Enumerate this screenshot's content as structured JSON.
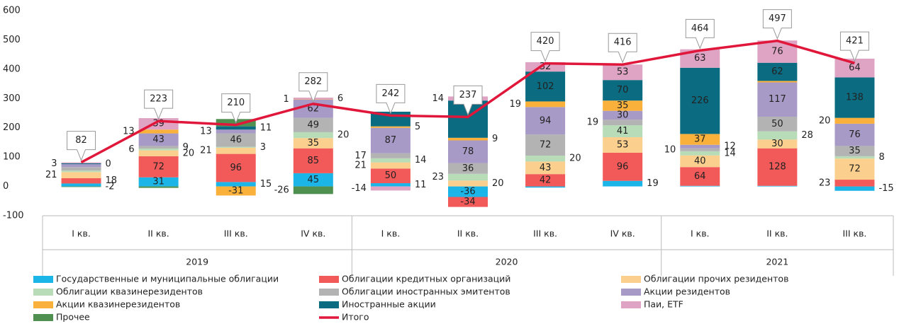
{
  "chart_data": {
    "type": "stacked_bar_line",
    "categories": [
      "I кв.",
      "II кв.",
      "III кв.",
      "IV кв.",
      "I кв.",
      "II кв.",
      "III кв.",
      "IV кв.",
      "I кв.",
      "II кв.",
      "III кв."
    ],
    "x_groups": [
      {
        "label": "2019",
        "span": 4
      },
      {
        "label": "2020",
        "span": 4
      },
      {
        "label": "2021",
        "span": 3
      }
    ],
    "ylim": [
      -100,
      600
    ],
    "yticks": [
      -100,
      0,
      100,
      200,
      300,
      400,
      500,
      600
    ],
    "grid": false,
    "series": [
      {
        "name": "Государственные и муниципальные облигации",
        "color": "#1cb5e8",
        "values": [
          10,
          31,
          15,
          45,
          11,
          -36,
          -4,
          19,
          2,
          2,
          -15
        ],
        "value_labels": [
          null,
          "31",
          "15",
          "45",
          "11",
          "-36",
          null,
          "19",
          null,
          null,
          "-15"
        ]
      },
      {
        "name": "Облигации кредитных организаций",
        "color": "#f25a5a",
        "values": [
          18,
          72,
          96,
          85,
          50,
          -34,
          42,
          96,
          64,
          128,
          23
        ],
        "value_labels": [
          "18",
          "72",
          "96",
          "85",
          "50",
          "-34",
          "42",
          "96",
          "64",
          "128",
          "23"
        ]
      },
      {
        "name": "Облигации прочих резидентов",
        "color": "#fbcf8e",
        "values": [
          21,
          20,
          21,
          35,
          21,
          20,
          43,
          53,
          40,
          30,
          72
        ],
        "value_labels": [
          "21",
          "20",
          "21",
          "35",
          "21",
          "20",
          "43",
          "53",
          "40",
          "30",
          "72"
        ]
      },
      {
        "name": "Облигации квазинерезидентов",
        "color": "#b8dcb8",
        "values": [
          5,
          6,
          3,
          20,
          14,
          23,
          20,
          41,
          14,
          28,
          8
        ],
        "value_labels": [
          null,
          "6",
          "3",
          "20",
          "14",
          "23",
          "20",
          "41",
          "14",
          "28",
          "8"
        ]
      },
      {
        "name": "Облигации иностранных эмитентов",
        "color": "#b3b3b3",
        "values": [
          12,
          9,
          46,
          49,
          17,
          36,
          72,
          19,
          10,
          50,
          35
        ],
        "value_labels": [
          null,
          "9",
          "46",
          "49",
          "17",
          "36",
          "72",
          "19",
          "10",
          "50",
          "35"
        ]
      },
      {
        "name": "Акции резидентов",
        "color": "#a89ac6",
        "values": [
          10,
          43,
          13,
          62,
          87,
          78,
          94,
          30,
          12,
          117,
          76
        ],
        "value_labels": [
          null,
          "43",
          "13",
          "62",
          "87",
          "78",
          "94",
          "30",
          "12",
          "117",
          "76"
        ]
      },
      {
        "name": "Акции квазинерезидентов",
        "color": "#f9b13c",
        "values": [
          0,
          13,
          -31,
          1,
          5,
          9,
          19,
          35,
          37,
          5,
          20
        ],
        "value_labels": [
          "0",
          "13",
          "-31",
          "1",
          "5",
          "9",
          "19",
          "35",
          "37",
          null,
          "20"
        ]
      },
      {
        "name": "Иностранные акции",
        "color": "#0b6b80",
        "values": [
          3,
          0,
          11,
          0,
          50,
          127,
          102,
          70,
          226,
          62,
          138
        ],
        "value_labels": [
          "3",
          null,
          "11",
          null,
          null,
          null,
          "102",
          "70",
          "226",
          "62",
          "138"
        ]
      },
      {
        "name": "Паи, ETF",
        "color": "#dfa3c4",
        "values": [
          3,
          39,
          0,
          6,
          -14,
          14,
          32,
          53,
          63,
          76,
          64
        ],
        "value_labels": [
          null,
          "39",
          null,
          "6",
          "-14",
          "14",
          "32",
          "53",
          "63",
          "76",
          "64"
        ]
      },
      {
        "name": "Прочее",
        "color": "#4f8f4f",
        "values": [
          -2,
          -5,
          25,
          -26,
          0,
          0,
          0,
          0,
          0,
          0,
          0
        ],
        "value_labels": [
          "-2",
          null,
          null,
          "-26",
          null,
          null,
          null,
          null,
          null,
          null,
          null
        ]
      },
      {
        "name": "Итого",
        "color": "#e0173a",
        "type": "line",
        "values": [
          82,
          223,
          210,
          282,
          242,
          237,
          420,
          416,
          464,
          497,
          421
        ]
      }
    ]
  }
}
